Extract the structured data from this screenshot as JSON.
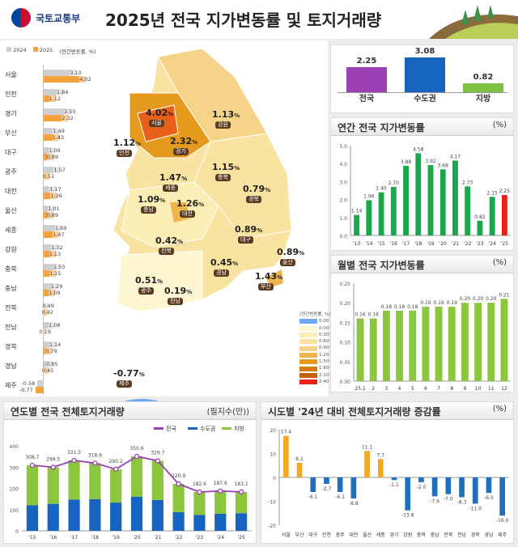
{
  "header": {
    "logo": "국토교통부",
    "title": "2025년 전국 지가변동률 및 토지거래량"
  },
  "regional": {
    "legend": [
      "2024",
      "2025"
    ],
    "unit": "(연간변동률, %)",
    "colors": {
      "y2024": "#cfcfcf",
      "y2025": "#f5a23c"
    },
    "rows": [
      [
        "서울",
        3.1,
        4.02
      ],
      [
        "인천",
        1.84,
        1.12
      ],
      [
        "경기",
        2.55,
        2.32
      ],
      [
        "부산",
        1.49,
        1.43
      ],
      [
        "대구",
        1.09,
        0.89
      ],
      [
        "광주",
        1.57,
        0.51
      ],
      [
        "대전",
        1.17,
        1.26
      ],
      [
        "울산",
        1.01,
        0.89
      ],
      [
        "세종",
        1.69,
        1.47
      ],
      [
        "강원",
        1.32,
        1.13
      ],
      [
        "충북",
        1.53,
        1.15
      ],
      [
        "충남",
        1.29,
        1.09
      ],
      [
        "전북",
        0.49,
        0.42
      ],
      [
        "전남",
        1.08,
        0.19
      ],
      [
        "경북",
        1.14,
        0.79
      ],
      [
        "경남",
        0.85,
        0.45
      ],
      [
        "제주",
        -0.58,
        -0.77
      ]
    ]
  },
  "map": {
    "unit_suffix": "%",
    "regions": [
      {
        "name": "서울",
        "value": "4.02"
      },
      {
        "name": "인천",
        "value": "1.12"
      },
      {
        "name": "경기",
        "value": "2.32"
      },
      {
        "name": "강원",
        "value": "1.13"
      },
      {
        "name": "충북",
        "value": "1.15"
      },
      {
        "name": "세종",
        "value": "1.47"
      },
      {
        "name": "충남",
        "value": "1.09"
      },
      {
        "name": "대전",
        "value": "1.26"
      },
      {
        "name": "경북",
        "value": "0.79"
      },
      {
        "name": "대구",
        "value": "0.89"
      },
      {
        "name": "전북",
        "value": "0.42"
      },
      {
        "name": "경남",
        "value": "0.45"
      },
      {
        "name": "울산",
        "value": "0.89"
      },
      {
        "name": "부산",
        "value": "1.43"
      },
      {
        "name": "광주",
        "value": "0.51"
      },
      {
        "name": "전남",
        "value": "0.19"
      },
      {
        "name": "제주",
        "value": "-0.77"
      }
    ],
    "legend_title": "(연간변동률, %)",
    "legend": [
      [
        "0.00 이하",
        "#6fa8f0"
      ],
      [
        "0.00~0.30",
        "#fdf6d0"
      ],
      [
        "0.30~0.60",
        "#fbeeb5"
      ],
      [
        "0.60~0.90",
        "#f8e3a0"
      ],
      [
        "0.90~1.20",
        "#f5d48a"
      ],
      [
        "1.20~1.50",
        "#f0b54a"
      ],
      [
        "1.50~1.80",
        "#e59a1d"
      ],
      [
        "1.80~2.10",
        "#d57b10"
      ],
      [
        "2.10~2.40",
        "#c45f0a"
      ],
      [
        "2.40 초과",
        "#e8201a"
      ]
    ]
  },
  "summary": {
    "items": [
      {
        "label": "전국",
        "value": "2.25",
        "color": "#9b3fb5"
      },
      {
        "label": "수도권",
        "value": "3.08",
        "color": "#1565c0"
      },
      {
        "label": "지방",
        "value": "0.82",
        "color": "#7dc142"
      }
    ]
  },
  "chart_data": [
    {
      "type": "bar",
      "title": "연간 전국 지가변동률",
      "unit": "(%)",
      "categories": [
        "'13",
        "'14",
        "'15",
        "'16",
        "'17",
        "'18",
        "'19",
        "'20",
        "'21",
        "'22",
        "'23",
        "'24",
        "'25"
      ],
      "values": [
        1.14,
        1.96,
        2.4,
        2.7,
        3.88,
        4.58,
        3.92,
        3.68,
        4.17,
        2.73,
        0.82,
        2.15,
        2.25
      ],
      "ylim": [
        0,
        5
      ],
      "yticks": [
        "0.0",
        "1.0",
        "2.0",
        "3.0",
        "4.0",
        "5.0"
      ],
      "colors": {
        "bar": "#1aa64a",
        "highlight": "#e8201a"
      }
    },
    {
      "type": "bar",
      "title": "월별 전국 지가변동률",
      "unit": "(%)",
      "categories": [
        "25.1",
        "2",
        "3",
        "4",
        "5",
        "6",
        "7",
        "8",
        "9",
        "10",
        "11",
        "12"
      ],
      "values": [
        0.16,
        0.16,
        0.18,
        0.18,
        0.18,
        0.19,
        0.19,
        0.19,
        0.2,
        0.2,
        0.2,
        0.21
      ],
      "ylim": [
        0,
        0.25
      ],
      "yticks": [
        "0.00",
        "0.05",
        "0.10",
        "0.15",
        "0.20",
        "0.25"
      ],
      "colors": {
        "bar": "#8cc63f"
      }
    },
    {
      "type": "bar",
      "title": "연도별 전국 전체토지거래량",
      "unit": "(필지수(만))",
      "categories": [
        "'15",
        "'16",
        "'17",
        "'18",
        "'19",
        "'20",
        "'21",
        "'22",
        "'23",
        "'24",
        "'25"
      ],
      "series": [
        {
          "name": "전국",
          "values": [
            308.7,
            299.5,
            331.5,
            318.6,
            290.2,
            350.6,
            329.7,
            220.9,
            182.6,
            187.6,
            183.1
          ]
        },
        {
          "name": "수도권",
          "values": [
            120,
            127,
            147,
            149,
            133,
            161,
            145,
            88,
            75,
            80,
            83
          ]
        },
        {
          "name": "지방",
          "values": [
            188.7,
            172.5,
            184.5,
            169.6,
            157.2,
            189.6,
            184.7,
            132.9,
            107.6,
            107.6,
            100.1
          ]
        }
      ],
      "ylim": [
        0,
        400
      ],
      "yticks": [
        "0",
        "100",
        "200",
        "300",
        "400"
      ],
      "colors": {
        "전국": "#9b3fb5",
        "수도권": "#1565c0",
        "지방": "#8cc63f"
      }
    },
    {
      "type": "bar",
      "title": "시도별 '24년 대비 전체토지거래량 증감률",
      "unit": "(%)",
      "categories": [
        "서울",
        "부산",
        "대구",
        "인천",
        "광주",
        "대전",
        "울산",
        "세종",
        "경기",
        "강원",
        "충북",
        "충남",
        "전북",
        "전남",
        "경북",
        "경남",
        "제주"
      ],
      "values": [
        17.4,
        6.1,
        -6.1,
        -2.7,
        -6.1,
        -8.8,
        11.1,
        7.7,
        -1.1,
        -13.8,
        -2.0,
        -7.9,
        -7.0,
        -8.3,
        -11.0,
        -6.5,
        -16.0
      ],
      "ylim": [
        -20,
        20
      ],
      "yticks": [
        "-20",
        "-10",
        "0",
        "10",
        "20"
      ],
      "colors": {
        "pos": "#f5a623",
        "neg": "#1f6fc0"
      }
    }
  ]
}
